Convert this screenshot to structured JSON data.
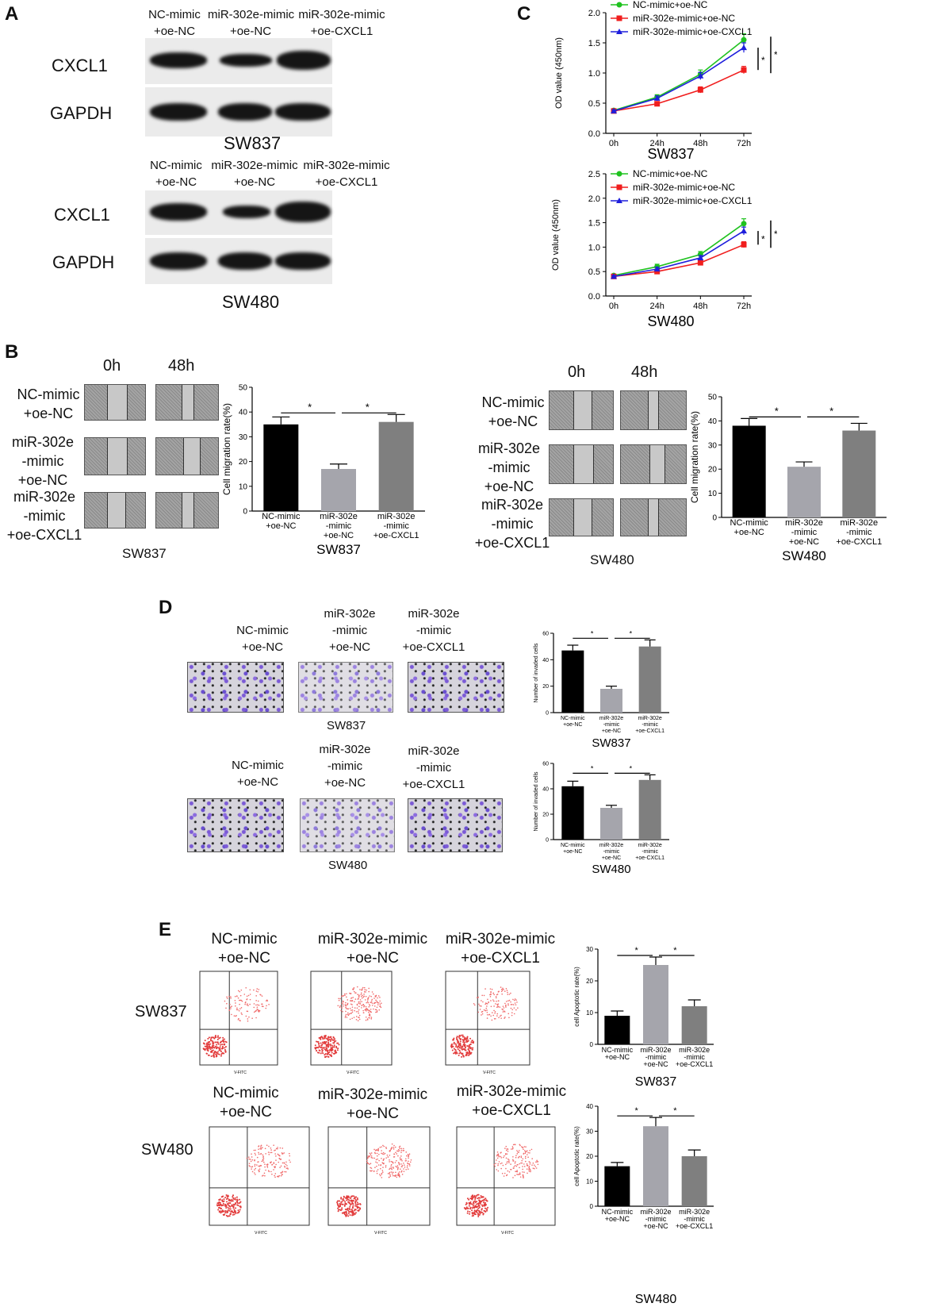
{
  "panels": {
    "A": "A",
    "B": "B",
    "C": "C",
    "D": "D",
    "E": "E"
  },
  "blots": {
    "sw837": {
      "cols": [
        [
          "NC-mimic",
          "+oe-NC"
        ],
        [
          "miR-302e-mimic",
          "+oe-NC"
        ],
        [
          "miR-302e-mimic",
          "+oe-CXCL1"
        ]
      ],
      "rows": [
        "CXCL1",
        "GAPDH"
      ],
      "cell_line": "SW837"
    },
    "sw480": {
      "cols": [
        [
          "NC-mimic",
          "+oe-NC"
        ],
        [
          "miR-302e-mimic",
          "+oe-NC"
        ],
        [
          "miR-302e-mimic",
          "+oe-CXCL1"
        ]
      ],
      "rows": [
        "CXCL1",
        "GAPDH"
      ],
      "cell_line": "SW480"
    }
  },
  "wound": {
    "sw837": {
      "times": [
        "0h",
        "48h"
      ],
      "groups": [
        [
          "NC-mimic",
          "+oe-NC"
        ],
        [
          "miR-302e",
          "-mimic",
          "+oe-NC"
        ],
        [
          "miR-302e",
          "-mimic",
          "+oe-CXCL1"
        ]
      ],
      "cell_line": "SW837"
    },
    "sw480": {
      "times": [
        "0h",
        "48h"
      ],
      "groups": [
        [
          "NC-mimic",
          "+oe-NC"
        ],
        [
          "miR-302e",
          "-mimic",
          "+oe-NC"
        ],
        [
          "miR-302e",
          "-mimic",
          "+oe-CXCL1"
        ]
      ],
      "cell_line": "SW480"
    }
  },
  "invasion": {
    "sw837": {
      "groups": [
        [
          "NC-mimic",
          "+oe-NC"
        ],
        [
          "miR-302e",
          "-mimic",
          "+oe-NC"
        ],
        [
          "miR-302e",
          "-mimic",
          "+oe-CXCL1"
        ]
      ],
      "cell_line": "SW837"
    },
    "sw480": {
      "groups": [
        [
          "NC-mimic",
          "+oe-NC"
        ],
        [
          "miR-302e",
          "-mimic",
          "+oe-NC"
        ],
        [
          "miR-302e",
          "-mimic",
          "+oe-CXCL1"
        ]
      ],
      "cell_line": "SW480"
    }
  },
  "flow": {
    "row1": {
      "label": "SW837",
      "groups": [
        [
          "NC-mimic",
          "+oe-NC"
        ],
        [
          "miR-302e-mimic",
          "+oe-NC"
        ],
        [
          "miR-302e-mimic",
          "+oe-CXCL1"
        ]
      ]
    },
    "row2": {
      "label": "SW480",
      "groups": [
        [
          "NC-mimic",
          "+oe-NC"
        ],
        [
          "miR-302e-mimic",
          "+oe-NC"
        ],
        [
          "miR-302e-mimic",
          "+oe-CXCL1"
        ]
      ]
    },
    "axis": "V-FITC"
  },
  "colors": {
    "nc": "#000000",
    "mir": "#a5a5ac",
    "mir_cx": "#7f7f7f",
    "green": "#1fc21f",
    "red": "#f01e1e",
    "blue": "#1e1edc"
  },
  "chart_data": [
    {
      "id": "c_sw837",
      "type": "line",
      "ylabel": "OD value (450nm)",
      "categories": [
        "0h",
        "24h",
        "48h",
        "72h"
      ],
      "ylim": [
        0,
        2
      ],
      "yticks": [
        0.0,
        0.5,
        1.0,
        1.5,
        2.0
      ],
      "caption": "SW837",
      "series": [
        {
          "name": "NC-mimic+oe-NC",
          "values": [
            0.38,
            0.6,
            0.98,
            1.55
          ],
          "err": [
            0.02,
            0.04,
            0.07,
            0.1
          ]
        },
        {
          "name": "miR-302e-mimic+oe-NC",
          "values": [
            0.37,
            0.49,
            0.72,
            1.05
          ],
          "err": [
            0.02,
            0.03,
            0.05,
            0.06
          ]
        },
        {
          "name": "miR-302e-mimic+oe-CXCL1",
          "values": [
            0.37,
            0.58,
            0.95,
            1.42
          ],
          "err": [
            0.02,
            0.04,
            0.06,
            0.08
          ]
        }
      ],
      "sig": [
        "*",
        "*"
      ]
    },
    {
      "id": "c_sw480",
      "type": "line",
      "ylabel": "OD value (450nm)",
      "categories": [
        "0h",
        "24h",
        "48h",
        "72h"
      ],
      "ylim": [
        0,
        2.5
      ],
      "yticks": [
        0.0,
        0.5,
        1.0,
        1.5,
        2.0,
        2.5
      ],
      "caption": "SW480",
      "series": [
        {
          "name": "NC-mimic+oe-NC",
          "values": [
            0.42,
            0.6,
            0.85,
            1.48
          ],
          "err": [
            0.02,
            0.05,
            0.06,
            0.1
          ]
        },
        {
          "name": "miR-302e-mimic+oe-NC",
          "values": [
            0.4,
            0.5,
            0.68,
            1.05
          ],
          "err": [
            0.02,
            0.03,
            0.04,
            0.06
          ]
        },
        {
          "name": "miR-302e-mimic+oe-CXCL1",
          "values": [
            0.4,
            0.55,
            0.78,
            1.33
          ],
          "err": [
            0.02,
            0.04,
            0.05,
            0.08
          ]
        }
      ],
      "sig": [
        "*",
        "*"
      ]
    },
    {
      "id": "b_mig837",
      "type": "bar",
      "ylabel": "Cell migration rate(%)",
      "categories": [
        [
          "NC-mimic",
          "+oe-NC"
        ],
        [
          "miR-302e",
          "-mimic",
          "+oe-NC"
        ],
        [
          "miR-302e",
          "-mimic",
          "+oe-CXCL1"
        ]
      ],
      "values": [
        35,
        17,
        36
      ],
      "err": [
        3,
        2,
        3
      ],
      "ylim": [
        0,
        50
      ],
      "yticks": [
        0,
        10,
        20,
        30,
        40,
        50
      ],
      "caption": "SW837",
      "sig": "*"
    },
    {
      "id": "b_mig480",
      "type": "bar",
      "ylabel": "Cell migration rate(%)",
      "categories": [
        [
          "NC-mimic",
          "+oe-NC"
        ],
        [
          "miR-302e",
          "-mimic",
          "+oe-NC"
        ],
        [
          "miR-302e",
          "-mimic",
          "+oe-CXCL1"
        ]
      ],
      "values": [
        38,
        21,
        36
      ],
      "err": [
        3,
        2,
        3
      ],
      "ylim": [
        0,
        50
      ],
      "yticks": [
        0,
        10,
        20,
        30,
        40,
        50
      ],
      "caption": "SW480",
      "sig": "*"
    },
    {
      "id": "b_inv837",
      "type": "bar",
      "ylabel": "Number of invaded cells",
      "categories": [
        [
          "NC-mimic",
          "+oe-NC"
        ],
        [
          "miR-302e",
          "-mimic",
          "+oe-NC"
        ],
        [
          "miR-302e",
          "-mimic",
          "+oe-CXCL1"
        ]
      ],
      "values": [
        47,
        18,
        50
      ],
      "err": [
        4,
        2,
        5
      ],
      "ylim": [
        0,
        60
      ],
      "yticks": [
        0,
        20,
        40,
        60
      ],
      "caption": "SW837",
      "sig": "*"
    },
    {
      "id": "b_inv480",
      "type": "bar",
      "ylabel": "Number of invaded cells",
      "categories": [
        [
          "NC-mimic",
          "+oe-NC"
        ],
        [
          "miR-302e",
          "-mimic",
          "+oe-NC"
        ],
        [
          "miR-302e",
          "-mimic",
          "+oe-CXCL1"
        ]
      ],
      "values": [
        42,
        25,
        47
      ],
      "err": [
        4,
        2,
        4
      ],
      "ylim": [
        0,
        60
      ],
      "yticks": [
        0,
        20,
        40,
        60
      ],
      "caption": "SW480",
      "sig": "*"
    },
    {
      "id": "b_apo837",
      "type": "bar",
      "ylabel": "cell Apoptotic rate(%)",
      "categories": [
        [
          "NC-mimic",
          "+oe-NC"
        ],
        [
          "miR-302e",
          "-mimic",
          "+oe-NC"
        ],
        [
          "miR-302e",
          "-mimic",
          "+oe-CXCL1"
        ]
      ],
      "values": [
        9,
        25,
        12
      ],
      "err": [
        1.5,
        2.5,
        2
      ],
      "ylim": [
        0,
        30
      ],
      "yticks": [
        0,
        10,
        20,
        30
      ],
      "caption": "SW837",
      "sig": "*"
    },
    {
      "id": "b_apo480",
      "type": "bar",
      "ylabel": "cell Apoptotic rate(%)",
      "categories": [
        [
          "NC-mimic",
          "+oe-NC"
        ],
        [
          "miR-302e",
          "-mimic",
          "+oe-NC"
        ],
        [
          "miR-302e",
          "-mimic",
          "+oe-CXCL1"
        ]
      ],
      "values": [
        16,
        32,
        20
      ],
      "err": [
        1.5,
        3.5,
        2.5
      ],
      "ylim": [
        0,
        40
      ],
      "yticks": [
        0,
        10,
        20,
        30,
        40
      ],
      "caption": "SW480",
      "sig": "*"
    }
  ]
}
